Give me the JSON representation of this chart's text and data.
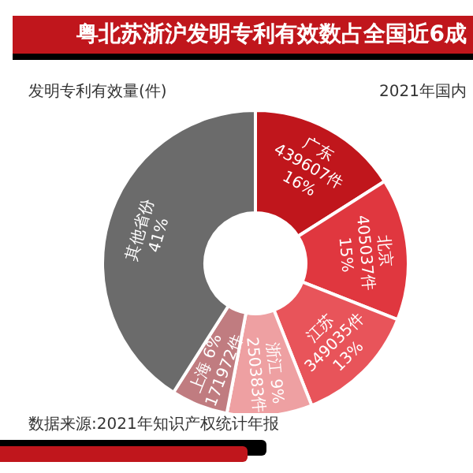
{
  "chart_data": {
    "type": "donut",
    "title": "粤北苏浙沪发明专利有效数占全国近6成",
    "annotations": [
      "发明专利有效量(件)",
      "2021年国内",
      "数据来源:2021年知识产权统计年报",
      {
        "text": "439607件",
        "x": "广东"
      },
      {
        "text": "405037件",
        "x": "北京"
      },
      {
        "text": "349035件",
        "x": "江苏"
      },
      {
        "text": "250383件",
        "x": "浙江"
      },
      {
        "text": "171972件",
        "x": "上海"
      }
    ],
    "categories": [
      "广东",
      "北京",
      "江苏",
      "浙江",
      "上海",
      "其他省份"
    ],
    "values": [
      16,
      15,
      13,
      9,
      6,
      41
    ],
    "value_labels": [
      "16%",
      "15%",
      "13%",
      "9%",
      "6%",
      "41%"
    ],
    "colors": [
      "#c0161c",
      "#e0373f",
      "#e8545a",
      "#eea0a2",
      "#c07c80",
      "#6b6b6b"
    ]
  }
}
